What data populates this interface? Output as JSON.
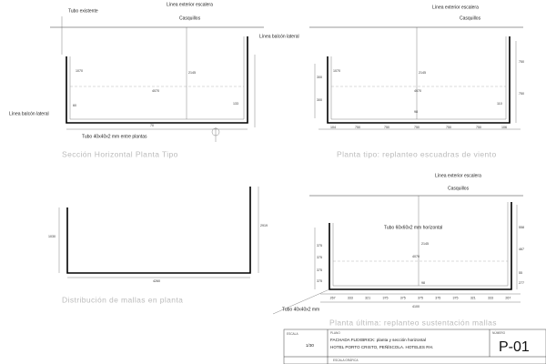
{
  "top_left": {
    "title": "Sección Horizontal Planta Tipo",
    "labels": [
      "Tubo existente",
      "Línea exterior escalera",
      "Casquillos",
      "Línea balcón lateral",
      "Línea balcón lateral",
      "Tubo 40x40x2 mm entre plantas"
    ],
    "dimensions": [
      "1070",
      "2145",
      "4070",
      "60",
      "133",
      "70"
    ]
  },
  "top_right": {
    "title": "Planta tipo: replanteo escuadras de viento",
    "labels": [
      "Línea exterior escalera",
      "Casquillos"
    ],
    "dimensions": [
      "1070",
      "2145",
      "4070",
      "750",
      "750",
      "110",
      "300",
      "300",
      "98",
      "104",
      "750",
      "750",
      "750",
      "750",
      "750",
      "106"
    ]
  },
  "bottom_left": {
    "title": "Distribución de mallas en planta",
    "dimensions": [
      "1030",
      "2919",
      "4260"
    ]
  },
  "bottom_right": {
    "title": "Planta última: replanteo sustentación mallas",
    "labels": [
      "Línea exterior escalera",
      "Casquillos",
      "Tubo 60x60x2 mm horizontal",
      "Tubo 40x40x2 mm"
    ],
    "dimensions": [
      "2145",
      "4070",
      "98",
      "4100",
      "558",
      "467",
      "55",
      "277",
      "375",
      "375",
      "375",
      "375",
      "267",
      "333",
      "321",
      "375",
      "375",
      "375",
      "375",
      "375",
      "321",
      "333",
      "267"
    ]
  },
  "title_block": {
    "scale_label": "ESCALA",
    "scale": "1/30",
    "plan_label": "PLANO",
    "plan_title": "FACHADA FLEXBRICK: planta y sección horizontal",
    "project": "HOTEL PORTO CRISTO, PEÑÍSCOLA. HOTELES RH.",
    "number_label": "NÚMERO",
    "number": "P-01",
    "graphic_scale": "ESCALA GRÁFICA"
  }
}
